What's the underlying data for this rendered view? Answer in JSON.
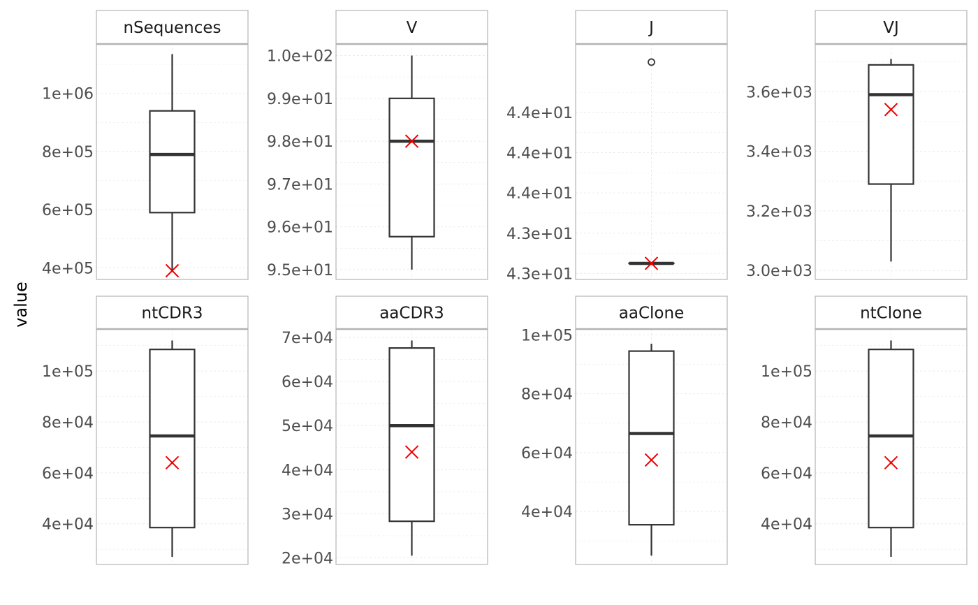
{
  "chart_data": {
    "type": "boxplot",
    "ylabel": "value",
    "grid": true,
    "facets": [
      {
        "label": "nSequences",
        "y_range": [
          360000,
          1170000
        ],
        "ticks": [
          400000,
          600000,
          800000,
          1000000
        ],
        "tick_labels": [
          "4e+05",
          "6e+05",
          "8e+05",
          "1e+06"
        ],
        "box": {
          "lower_whisker": 390000,
          "q1": 590000,
          "median": 790000,
          "q3": 940000,
          "upper_whisker": 1135000
        },
        "outliers": [],
        "mean": 390000
      },
      {
        "label": "V",
        "y_range": [
          94.77,
          100.27
        ],
        "ticks": [
          95,
          96,
          97,
          98,
          99,
          100
        ],
        "tick_labels": [
          "9.5e+01",
          "9.6e+01",
          "9.7e+01",
          "9.8e+01",
          "9.9e+01",
          "1.0e+02"
        ],
        "box": {
          "lower_whisker": 95.0,
          "q1": 95.77,
          "median": 98.0,
          "q3": 99.0,
          "upper_whisker": 100.0
        },
        "outliers": [],
        "mean": 98.0
      },
      {
        "label": "J",
        "y_range": [
          42.92,
          44.09
        ],
        "ticks": [
          42.95,
          43.15,
          43.35,
          43.55,
          43.75
        ],
        "tick_labels": [
          "4.3e+01",
          "4.3e+01",
          "4.4e+01",
          "4.4e+01",
          "4.4e+01"
        ],
        "box": {
          "lower_whisker": 43.0,
          "q1": 43.0,
          "median": 43.0,
          "q3": 43.0,
          "upper_whisker": 43.0
        },
        "outliers": [
          44.0
        ],
        "mean": 43.0
      },
      {
        "label": "VJ",
        "y_range": [
          2970,
          3760
        ],
        "ticks": [
          3000,
          3200,
          3400,
          3600
        ],
        "tick_labels": [
          "3.0e+03",
          "3.2e+03",
          "3.4e+03",
          "3.6e+03"
        ],
        "box": {
          "lower_whisker": 3030,
          "q1": 3290,
          "median": 3590,
          "q3": 3690,
          "upper_whisker": 3710
        },
        "outliers": [],
        "mean": 3540
      },
      {
        "label": "ntCDR3",
        "y_range": [
          24000,
          116500
        ],
        "ticks": [
          40000,
          60000,
          80000,
          100000
        ],
        "tick_labels": [
          "4e+04",
          "6e+04",
          "8e+04",
          "1e+05"
        ],
        "box": {
          "lower_whisker": 27000,
          "q1": 38500,
          "median": 74500,
          "q3": 108500,
          "upper_whisker": 112000
        },
        "outliers": [],
        "mean": 64000
      },
      {
        "label": "aaCDR3",
        "y_range": [
          18500,
          71900
        ],
        "ticks": [
          20000,
          30000,
          40000,
          50000,
          60000,
          70000
        ],
        "tick_labels": [
          "2e+04",
          "3e+04",
          "4e+04",
          "5e+04",
          "6e+04",
          "7e+04"
        ],
        "box": {
          "lower_whisker": 20500,
          "q1": 28300,
          "median": 50000,
          "q3": 67600,
          "upper_whisker": 69300
        },
        "outliers": [],
        "mean": 44000
      },
      {
        "label": "aaClone",
        "y_range": [
          22000,
          102000
        ],
        "ticks": [
          40000,
          60000,
          80000,
          100000
        ],
        "tick_labels": [
          "4e+04",
          "6e+04",
          "8e+04",
          "1e+05"
        ],
        "box": {
          "lower_whisker": 25000,
          "q1": 35500,
          "median": 66500,
          "q3": 94500,
          "upper_whisker": 97000
        },
        "outliers": [],
        "mean": 57500
      },
      {
        "label": "ntClone",
        "y_range": [
          24000,
          116500
        ],
        "ticks": [
          40000,
          60000,
          80000,
          100000
        ],
        "tick_labels": [
          "4e+04",
          "6e+04",
          "8e+04",
          "1e+05"
        ],
        "box": {
          "lower_whisker": 27000,
          "q1": 38500,
          "median": 74500,
          "q3": 108500,
          "upper_whisker": 112000
        },
        "outliers": [],
        "mean": 64000
      }
    ]
  },
  "colors": {
    "box_line": "#333333",
    "mean_marker": "#ee0000",
    "panel_border": "#b3b3b3",
    "strip_fill": "#ffffff",
    "grid": "#ebebeb",
    "tick_text": "#4d4d4d",
    "title_text": "#000000"
  }
}
